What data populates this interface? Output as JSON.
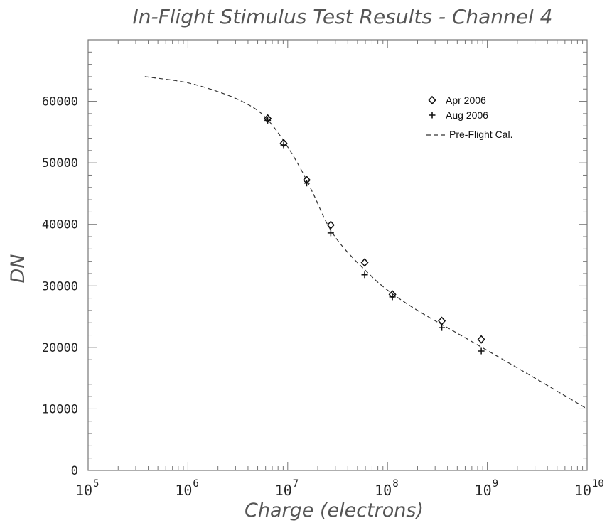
{
  "chart_data": {
    "type": "scatter",
    "title": "In-Flight Stimulus Test Results - Channel 4",
    "xlabel": "Charge (electrons)",
    "ylabel": "DN",
    "x_scale": "log",
    "xlim": [
      100000,
      10000000000
    ],
    "ylim": [
      0,
      70000
    ],
    "x_ticks": [
      {
        "base": "10",
        "exp": "5",
        "value": 100000
      },
      {
        "base": "10",
        "exp": "6",
        "value": 1000000
      },
      {
        "base": "10",
        "exp": "7",
        "value": 10000000
      },
      {
        "base": "10",
        "exp": "8",
        "value": 100000000
      },
      {
        "base": "10",
        "exp": "9",
        "value": 1000000000
      },
      {
        "base": "10",
        "exp": "10",
        "value": 10000000000
      }
    ],
    "y_ticks": [
      {
        "label": "0",
        "value": 0
      },
      {
        "label": "10000",
        "value": 10000
      },
      {
        "label": "20000",
        "value": 20000
      },
      {
        "label": "30000",
        "value": 30000
      },
      {
        "label": "40000",
        "value": 40000
      },
      {
        "label": "50000",
        "value": 50000
      },
      {
        "label": "60000",
        "value": 60000
      }
    ],
    "grid": false,
    "legend_position": "top-right",
    "series": [
      {
        "name": "Apr 2006",
        "marker": "diamond",
        "x": [
          6300000,
          9100000,
          15500000,
          27000000,
          59000000,
          112000000,
          350000000,
          870000000
        ],
        "y": [
          57200,
          53200,
          47200,
          39900,
          33800,
          28600,
          24300,
          21300
        ]
      },
      {
        "name": "Aug 2006",
        "marker": "plus",
        "x": [
          6300000,
          9100000,
          15500000,
          27000000,
          59000000,
          112000000,
          350000000,
          870000000
        ],
        "y": [
          56900,
          52900,
          46700,
          38600,
          31800,
          28200,
          23200,
          19400
        ]
      },
      {
        "name": "Pre-Flight Cal.",
        "style": "dashed-line",
        "x": [
          370000,
          1000000,
          2500000,
          4500000,
          6300000,
          9000000,
          13000000,
          18000000,
          25000000,
          35000000,
          60000000,
          100000000,
          200000000,
          500000000,
          1000000000,
          3000000000,
          10000000000
        ],
        "y": [
          64000,
          63000,
          61000,
          59000,
          57000,
          53700,
          49500,
          45000,
          40000,
          36500,
          32500,
          29300,
          26000,
          22300,
          19500,
          15000,
          10000
        ]
      }
    ]
  }
}
